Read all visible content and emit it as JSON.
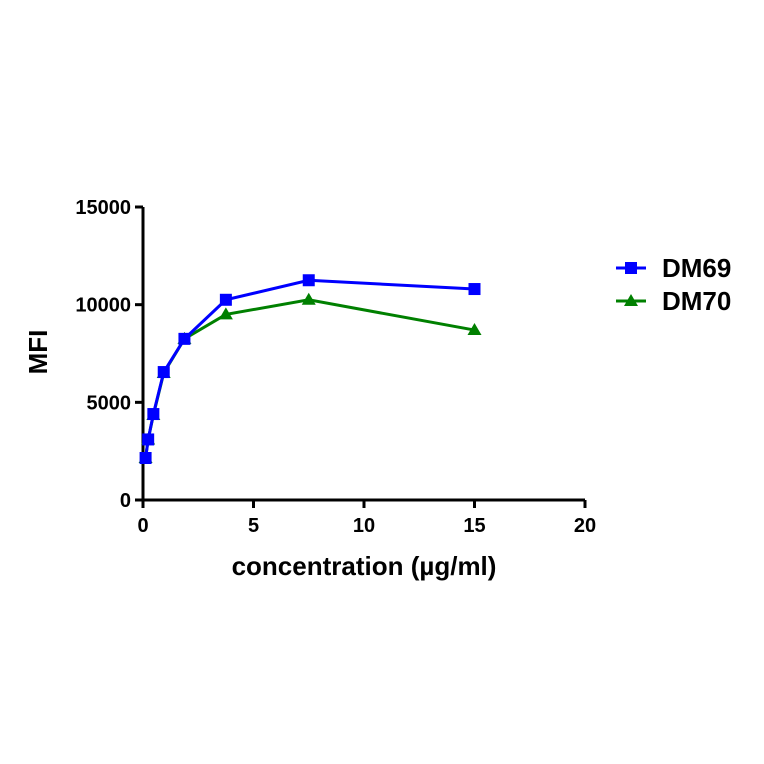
{
  "chart_data": {
    "type": "line",
    "title": "",
    "xlabel": "concentration (µg/ml)",
    "ylabel": "MFI",
    "xlim": [
      0,
      20
    ],
    "ylim": [
      0,
      15000
    ],
    "xticks": [
      0,
      5,
      10,
      15,
      20
    ],
    "yticks": [
      0,
      5000,
      10000,
      15000
    ],
    "grid": false,
    "legend_position": "right",
    "series": [
      {
        "name": "DM69",
        "color": "#0000ff",
        "marker": "square",
        "x": [
          0.117,
          0.234,
          0.469,
          0.938,
          1.875,
          3.75,
          7.5,
          15
        ],
        "values": [
          2150,
          3100,
          4400,
          6550,
          8250,
          10250,
          11250,
          10800
        ]
      },
      {
        "name": "DM70",
        "color": "#008000",
        "marker": "triangle",
        "x": [
          0.117,
          0.234,
          0.469,
          0.938,
          1.875,
          3.75,
          7.5,
          15
        ],
        "values": [
          2150,
          3100,
          4350,
          6500,
          8250,
          9500,
          10250,
          8700
        ]
      }
    ]
  }
}
